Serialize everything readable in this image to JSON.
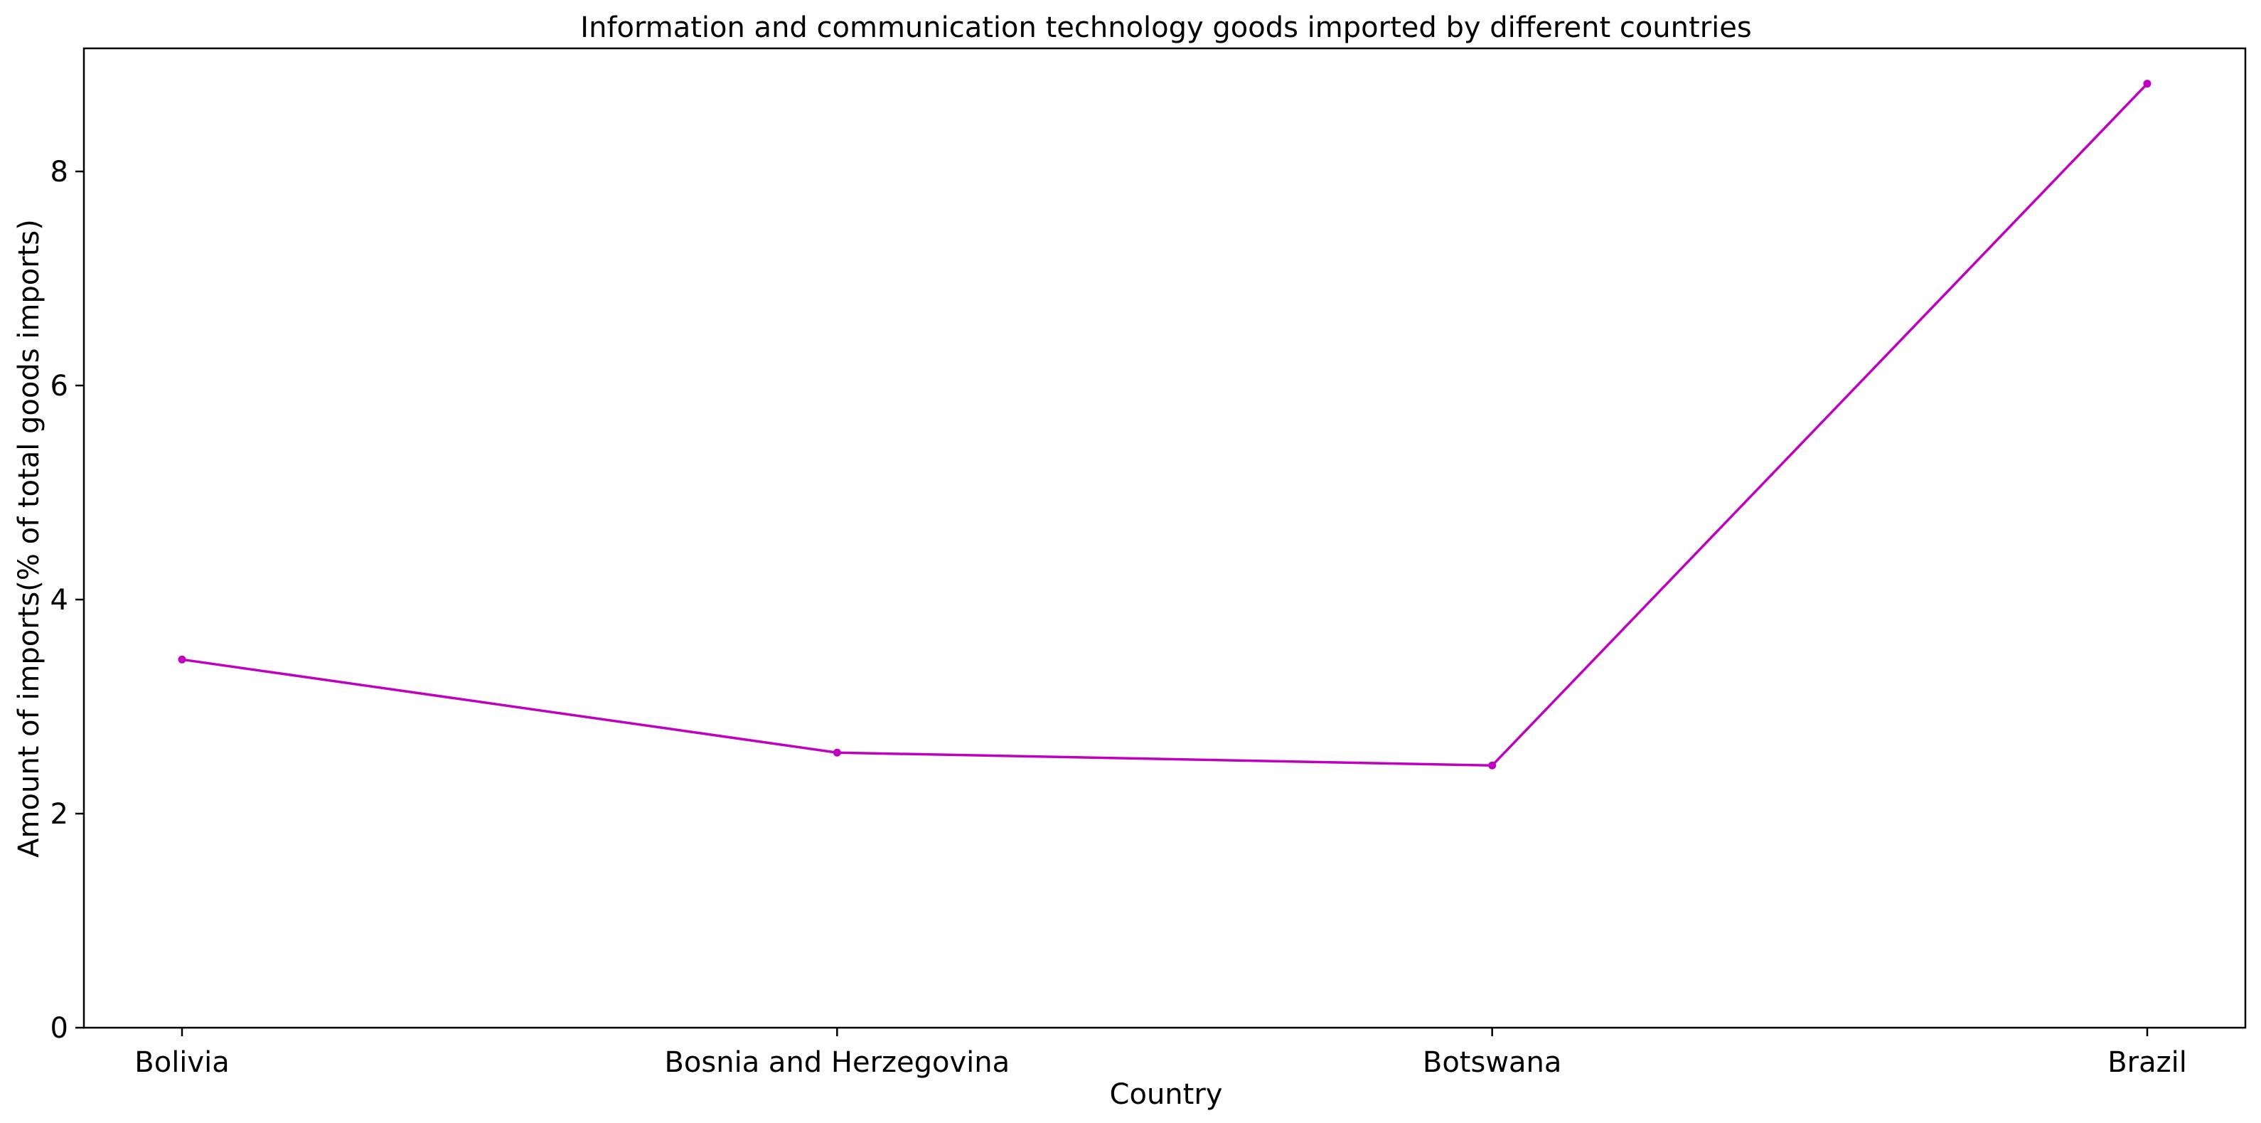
{
  "chart_data": {
    "type": "line",
    "title": "Information and communication technology goods imported by different countries",
    "xlabel": "Country",
    "ylabel": "Amount of imports(% of total goods imports)",
    "categories": [
      "Bolivia",
      "Bosnia and Herzegovina",
      "Botswana",
      "Brazil"
    ],
    "series": [
      {
        "values": [
          3.44,
          2.57,
          2.45,
          8.82
        ]
      }
    ],
    "ylim": [
      0,
      9.15
    ],
    "yticks": [
      0,
      2,
      4,
      6,
      8
    ],
    "grid": false,
    "line_color": "#c000c0",
    "marker": "dot"
  }
}
